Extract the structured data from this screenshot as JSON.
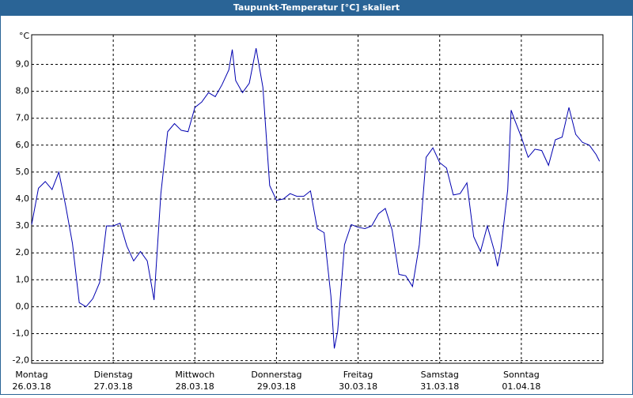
{
  "chart_data": {
    "type": "line",
    "title": "Taupunkt-Temperatur [°C] skaliert",
    "y_unit": "°C",
    "x": [
      0,
      2,
      4,
      6,
      8,
      10,
      12,
      14,
      16,
      18,
      20,
      22,
      24,
      26,
      28,
      30,
      32,
      34,
      36,
      38,
      40,
      42,
      44,
      46,
      48,
      50,
      52,
      54,
      56,
      58,
      59,
      60,
      62,
      64,
      66,
      68,
      70,
      72,
      74,
      76,
      78,
      80,
      82,
      84,
      86,
      88,
      89,
      90,
      92,
      94,
      96,
      98,
      100,
      102,
      104,
      106,
      108,
      110,
      112,
      114,
      116,
      118,
      120,
      122,
      124,
      126,
      128,
      130,
      132,
      134,
      136,
      137,
      138,
      140,
      141,
      142,
      144,
      146,
      148,
      150,
      152,
      154,
      156,
      158,
      160,
      162,
      164,
      166,
      167
    ],
    "series": [
      {
        "name": "Taupunkt",
        "color": "#0000b0",
        "values": [
          3.05,
          4.4,
          4.65,
          4.35,
          5.0,
          3.75,
          2.35,
          0.15,
          0.0,
          0.3,
          0.9,
          3.0,
          3.0,
          3.1,
          2.25,
          1.7,
          2.05,
          1.7,
          0.25,
          4.2,
          6.5,
          6.8,
          6.55,
          6.5,
          7.4,
          7.6,
          7.95,
          7.8,
          8.25,
          8.8,
          9.55,
          8.4,
          7.95,
          8.3,
          9.6,
          8.15,
          4.5,
          3.95,
          4.0,
          4.2,
          4.1,
          4.1,
          4.3,
          2.9,
          2.75,
          0.4,
          -1.55,
          -0.9,
          2.3,
          3.05,
          2.95,
          2.9,
          3.0,
          3.45,
          3.65,
          2.85,
          1.2,
          1.15,
          0.75,
          2.3,
          5.55,
          5.9,
          5.35,
          5.15,
          4.15,
          4.2,
          4.6,
          2.6,
          2.05,
          3.0,
          2.1,
          1.5,
          2.15,
          4.35,
          7.3,
          6.95,
          6.3,
          5.55,
          5.85,
          5.8,
          5.25,
          6.2,
          6.3,
          7.4,
          6.4,
          6.1,
          6.0,
          5.65,
          5.4
        ]
      }
    ],
    "xlim": [
      0,
      168
    ],
    "xticks": [
      {
        "value": 0,
        "label": "Montag"
      },
      {
        "value": 24,
        "label": "Dienstag"
      },
      {
        "value": 48,
        "label": "Mittwoch"
      },
      {
        "value": 72,
        "label": "Donnerstag"
      },
      {
        "value": 96,
        "label": "Freitag"
      },
      {
        "value": 120,
        "label": "Samstag"
      },
      {
        "value": 144,
        "label": "Sonntag"
      }
    ],
    "xtick_dates": [
      "26.03.18",
      "27.03.18",
      "28.03.18",
      "29.03.18",
      "30.03.18",
      "31.03.18",
      "01.04.18"
    ],
    "ylim": [
      -2.1,
      10.1
    ],
    "yticks": [
      {
        "value": 9,
        "label": "9,0"
      },
      {
        "value": 8,
        "label": "8,0"
      },
      {
        "value": 7,
        "label": "7,0"
      },
      {
        "value": 6,
        "label": "6,0"
      },
      {
        "value": 5,
        "label": "5,0"
      },
      {
        "value": 4,
        "label": "4,0"
      },
      {
        "value": 3,
        "label": "3,0"
      },
      {
        "value": 2,
        "label": "2,0"
      },
      {
        "value": 1,
        "label": "1,0"
      },
      {
        "value": 0,
        "label": "0,0"
      },
      {
        "value": -1,
        "label": "-1,0"
      },
      {
        "value": -2,
        "label": "-2,0"
      }
    ],
    "grid": true
  }
}
